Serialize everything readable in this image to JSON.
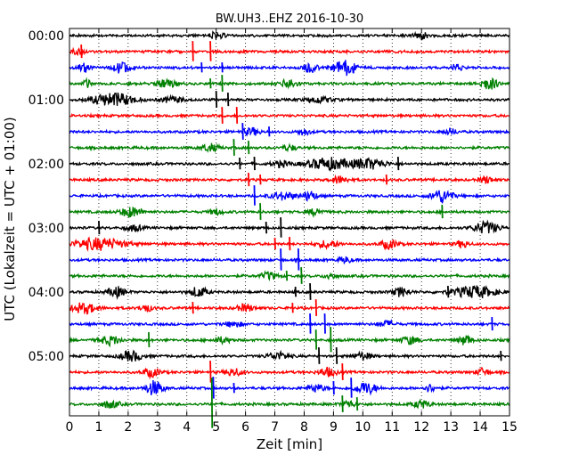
{
  "chart_data": {
    "type": "line",
    "title": "BW.UH3..EHZ 2016-10-30",
    "xlabel": "Zeit  [min]",
    "ylabel": "UTC (Lokalzeit = UTC + 01:00)",
    "xlim": [
      0,
      15
    ],
    "x_ticks": [
      0,
      1,
      2,
      3,
      4,
      5,
      6,
      7,
      8,
      9,
      10,
      11,
      12,
      13,
      14,
      15
    ],
    "x_grid": "dotted",
    "y_tick_labels": [
      "00:00",
      "01:00",
      "02:00",
      "03:00",
      "04:00",
      "05:00"
    ],
    "trace_interval_min": 15,
    "trace_colors": [
      "#000000",
      "#ff0000",
      "#0000ff",
      "#008000"
    ],
    "traces": [
      {
        "start": "00:00",
        "bursts": [
          [
            5,
            0.4,
            0.4
          ],
          [
            12,
            0.3,
            0.5
          ]
        ],
        "spikes": []
      },
      {
        "start": "00:15",
        "bursts": [
          [
            0.3,
            0.3,
            0.4
          ]
        ],
        "spikes": [
          [
            0.4,
            0.8
          ],
          [
            4.2,
            1.2
          ],
          [
            4.8,
            1.2
          ]
        ]
      },
      {
        "start": "00:30",
        "bursts": [
          [
            0.5,
            0.3,
            0.6
          ],
          [
            1.8,
            0.4,
            0.8
          ],
          [
            9.4,
            0.6,
            1.0
          ],
          [
            8.2,
            0.3,
            0.7
          ],
          [
            13.2,
            0.3,
            0.4
          ]
        ],
        "spikes": [
          [
            4.5,
            0.6
          ],
          [
            5.2,
            0.6
          ]
        ]
      },
      {
        "start": "00:45",
        "bursts": [
          [
            0.6,
            0.2,
            0.5
          ],
          [
            3.3,
            0.5,
            0.5
          ],
          [
            7.5,
            0.4,
            0.6
          ],
          [
            14.3,
            0.4,
            0.8
          ]
        ],
        "spikes": [
          [
            5.2,
            1.0
          ],
          [
            4.8,
            0.6
          ]
        ]
      },
      {
        "start": "01:00",
        "bursts": [
          [
            1.5,
            1.0,
            0.9
          ],
          [
            3.5,
            0.5,
            0.4
          ],
          [
            8.5,
            0.6,
            0.4
          ]
        ],
        "spikes": [
          [
            5.0,
            1.0
          ],
          [
            5.4,
            0.8
          ]
        ]
      },
      {
        "start": "01:15",
        "bursts": [],
        "spikes": [
          [
            5.2,
            1.0
          ],
          [
            5.7,
            1.0
          ]
        ]
      },
      {
        "start": "01:30",
        "bursts": [
          [
            6.2,
            0.4,
            0.5
          ],
          [
            8.0,
            0.3,
            0.4
          ],
          [
            13.0,
            0.3,
            0.4
          ]
        ],
        "spikes": [
          [
            5.9,
            1.0
          ],
          [
            6.8,
            0.6
          ]
        ]
      },
      {
        "start": "01:45",
        "bursts": [
          [
            4.8,
            0.4,
            0.5
          ],
          [
            7.5,
            0.3,
            0.4
          ]
        ],
        "spikes": [
          [
            5.6,
            1.0
          ],
          [
            6.1,
            0.8
          ]
        ]
      },
      {
        "start": "02:00",
        "bursts": [
          [
            8.8,
            1.0,
            0.8
          ],
          [
            10.2,
            0.8,
            0.7
          ],
          [
            7.2,
            0.4,
            0.4
          ]
        ],
        "spikes": [
          [
            5.8,
            0.7
          ],
          [
            6.3,
            0.8
          ],
          [
            11.2,
            0.8
          ]
        ]
      },
      {
        "start": "02:15",
        "bursts": [
          [
            9.2,
            0.4,
            0.5
          ],
          [
            14.2,
            0.3,
            0.5
          ]
        ],
        "spikes": [
          [
            6.1,
            0.8
          ],
          [
            6.5,
            0.6
          ],
          [
            10.8,
            0.6
          ]
        ]
      },
      {
        "start": "02:30",
        "bursts": [
          [
            7.3,
            0.6,
            0.5
          ],
          [
            8.2,
            0.3,
            0.7
          ],
          [
            12.7,
            0.5,
            0.9
          ]
        ],
        "spikes": [
          [
            6.3,
            1.2
          ]
        ]
      },
      {
        "start": "02:45",
        "bursts": [
          [
            2.1,
            0.5,
            0.7
          ],
          [
            5.0,
            0.3,
            0.4
          ],
          [
            8.4,
            0.3,
            0.5
          ]
        ],
        "spikes": [
          [
            6.5,
            1.0
          ],
          [
            12.7,
            0.8
          ]
        ]
      },
      {
        "start": "03:00",
        "bursts": [
          [
            2.2,
            0.4,
            0.4
          ],
          [
            14.2,
            0.6,
            0.8
          ]
        ],
        "spikes": [
          [
            1.0,
            0.8
          ],
          [
            6.7,
            0.7
          ],
          [
            7.2,
            1.2
          ]
        ]
      },
      {
        "start": "03:15",
        "bursts": [
          [
            1.0,
            1.2,
            0.8
          ],
          [
            8.8,
            0.5,
            0.5
          ],
          [
            10.9,
            0.4,
            0.6
          ],
          [
            13.4,
            0.3,
            0.5
          ]
        ],
        "spikes": [
          [
            7.0,
            0.7
          ],
          [
            7.5,
            0.8
          ]
        ]
      },
      {
        "start": "03:30",
        "bursts": [
          [
            9.4,
            0.3,
            0.4
          ]
        ],
        "spikes": [
          [
            7.2,
            1.3
          ],
          [
            7.8,
            1.3
          ]
        ]
      },
      {
        "start": "03:45",
        "bursts": [
          [
            6.8,
            0.4,
            0.5
          ],
          [
            8.9,
            0.3,
            0.4
          ]
        ],
        "spikes": [
          [
            7.9,
            1.0
          ],
          [
            7.4,
            0.6
          ]
        ]
      },
      {
        "start": "04:00",
        "bursts": [
          [
            1.6,
            0.4,
            0.7
          ],
          [
            4.4,
            0.4,
            0.7
          ],
          [
            11.3,
            0.4,
            0.6
          ],
          [
            13.8,
            1.0,
            0.8
          ]
        ],
        "spikes": [
          [
            7.7,
            0.6
          ],
          [
            8.2,
            1.0
          ],
          [
            12.9,
            0.7
          ]
        ]
      },
      {
        "start": "04:15",
        "bursts": [
          [
            0.5,
            0.6,
            0.7
          ],
          [
            2.6,
            0.3,
            0.5
          ],
          [
            6.0,
            0.4,
            0.5
          ]
        ],
        "spikes": [
          [
            4.2,
            0.7
          ],
          [
            7.6,
            0.6
          ],
          [
            8.4,
            1.0
          ]
        ]
      },
      {
        "start": "04:30",
        "bursts": [
          [
            5.6,
            0.4,
            0.4
          ],
          [
            10.8,
            0.4,
            0.4
          ]
        ],
        "spikes": [
          [
            8.2,
            1.2
          ],
          [
            8.7,
            1.2
          ],
          [
            14.4,
            0.8
          ]
        ]
      },
      {
        "start": "04:45",
        "bursts": [
          [
            1.4,
            0.5,
            0.6
          ],
          [
            5.2,
            0.4,
            0.4
          ],
          [
            11.6,
            0.4,
            0.5
          ],
          [
            13.5,
            0.3,
            0.7
          ]
        ],
        "spikes": [
          [
            2.7,
            0.9
          ],
          [
            8.4,
            1.2
          ],
          [
            8.9,
            1.5
          ]
        ]
      },
      {
        "start": "05:00",
        "bursts": [
          [
            2.1,
            0.5,
            0.7
          ],
          [
            7.1,
            0.5,
            0.5
          ],
          [
            10.0,
            0.4,
            0.5
          ]
        ],
        "spikes": [
          [
            8.5,
            1.0
          ],
          [
            9.1,
            1.0
          ],
          [
            14.7,
            0.6
          ]
        ]
      },
      {
        "start": "05:15",
        "bursts": [
          [
            2.8,
            0.4,
            0.6
          ],
          [
            5.6,
            0.4,
            0.5
          ],
          [
            8.8,
            0.4,
            0.6
          ],
          [
            14.1,
            0.3,
            0.5
          ]
        ],
        "spikes": [
          [
            4.8,
            1.3
          ],
          [
            9.3,
            1.0
          ]
        ]
      },
      {
        "start": "05:30",
        "bursts": [
          [
            2.9,
            0.4,
            1.0
          ],
          [
            8.4,
            0.4,
            0.5
          ],
          [
            10.1,
            0.5,
            0.8
          ],
          [
            12.3,
            0.3,
            0.5
          ]
        ],
        "spikes": [
          [
            4.9,
            1.3
          ],
          [
            5.6,
            0.6
          ],
          [
            9.0,
            0.8
          ],
          [
            9.6,
            1.2
          ]
        ]
      },
      {
        "start": "05:45",
        "bursts": [
          [
            1.4,
            0.4,
            0.5
          ],
          [
            9.5,
            0.3,
            0.5
          ],
          [
            12.0,
            0.4,
            0.5
          ]
        ],
        "spikes": [
          [
            4.85,
            3.0
          ],
          [
            9.3,
            1.0
          ],
          [
            9.8,
            0.8
          ]
        ]
      }
    ]
  }
}
